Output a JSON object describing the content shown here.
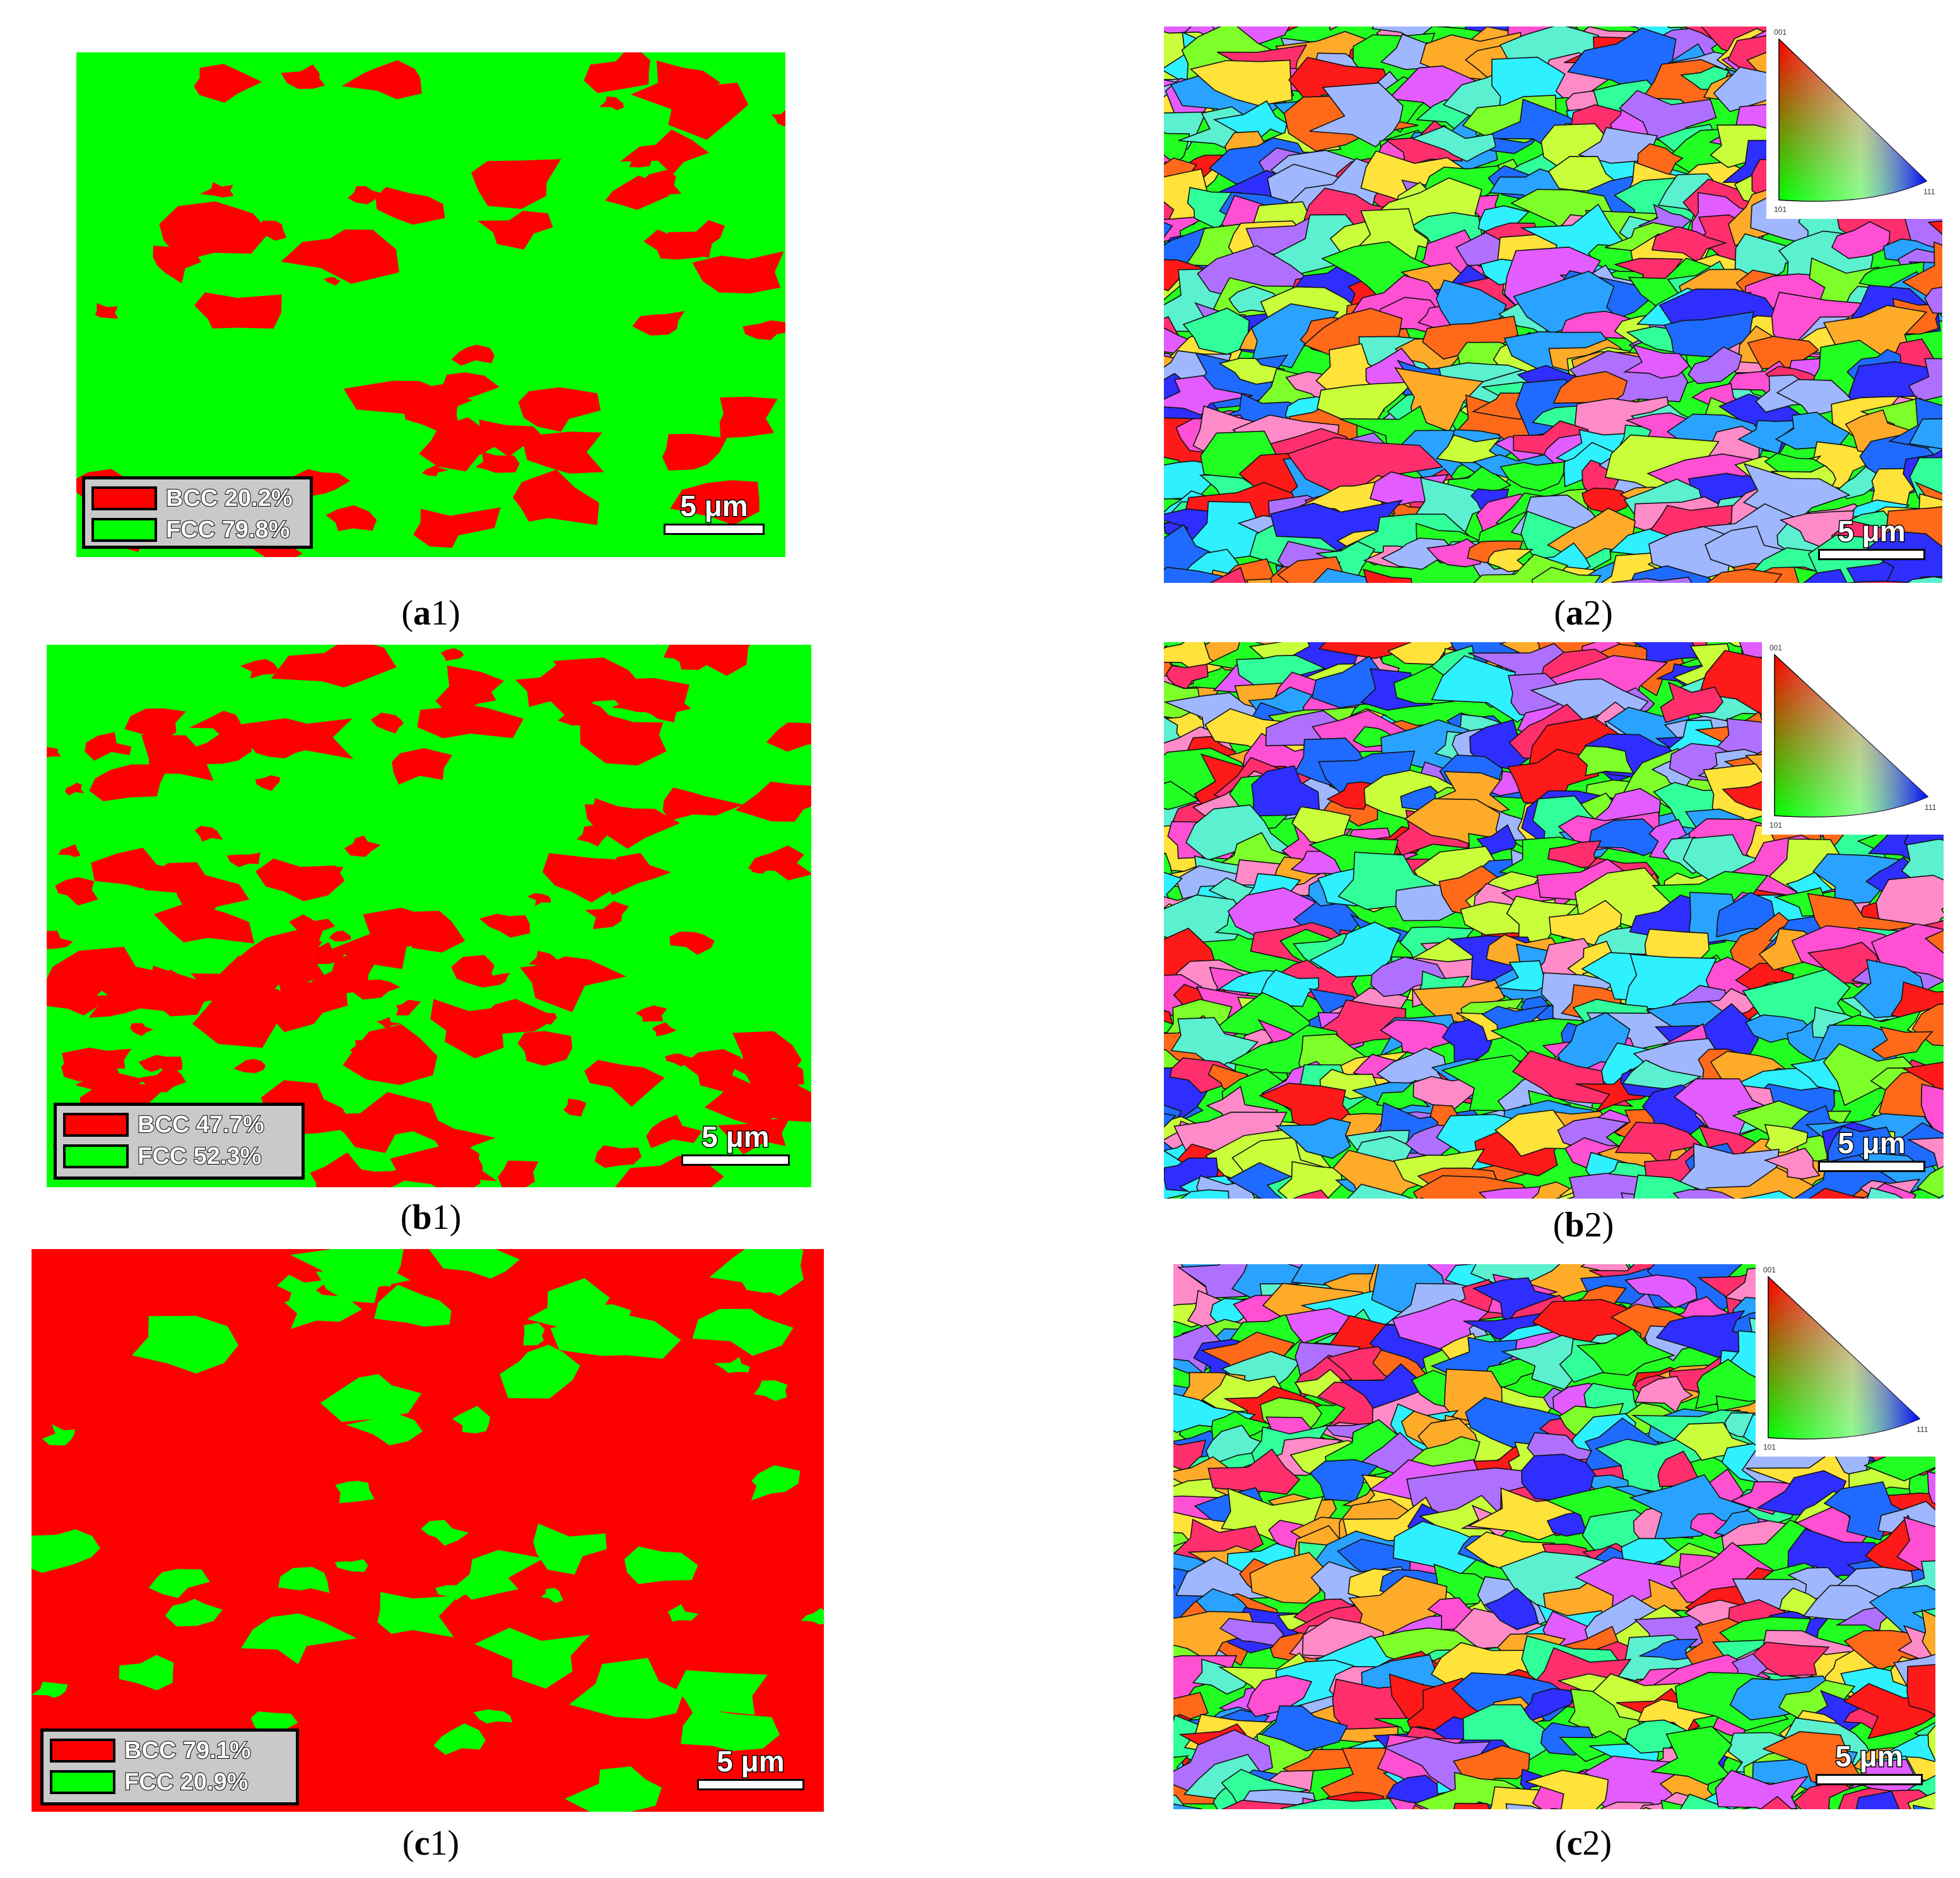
{
  "colors": {
    "bcc": "#ff0000",
    "fcc": "#00ff00"
  },
  "panels": {
    "a1": {
      "caption_letter": "a",
      "caption_num": "1",
      "bcc_label": "BCC 20.2%",
      "fcc_label": "FCC 79.8%",
      "bcc_fraction": 0.202,
      "scale": "5 μm"
    },
    "b1": {
      "caption_letter": "b",
      "caption_num": "1",
      "bcc_label": "BCC 47.7%",
      "fcc_label": "FCC 52.3%",
      "bcc_fraction": 0.477,
      "scale": "5 μm"
    },
    "c1": {
      "caption_letter": "c",
      "caption_num": "1",
      "bcc_label": "BCC 79.1%",
      "fcc_label": "FCC 20.9%",
      "bcc_fraction": 0.791,
      "scale": "5 μm"
    },
    "a2": {
      "caption_letter": "a",
      "caption_num": "2",
      "scale": "5 μm",
      "ipf_labels": [
        "001",
        "101",
        "111"
      ]
    },
    "b2": {
      "caption_letter": "b",
      "caption_num": "2",
      "scale": "5 μm",
      "ipf_labels": [
        "001",
        "101",
        "111"
      ]
    },
    "c2": {
      "caption_letter": "c",
      "caption_num": "2",
      "scale": "5 μm",
      "ipf_labels": [
        "001",
        "101",
        "111"
      ]
    }
  }
}
